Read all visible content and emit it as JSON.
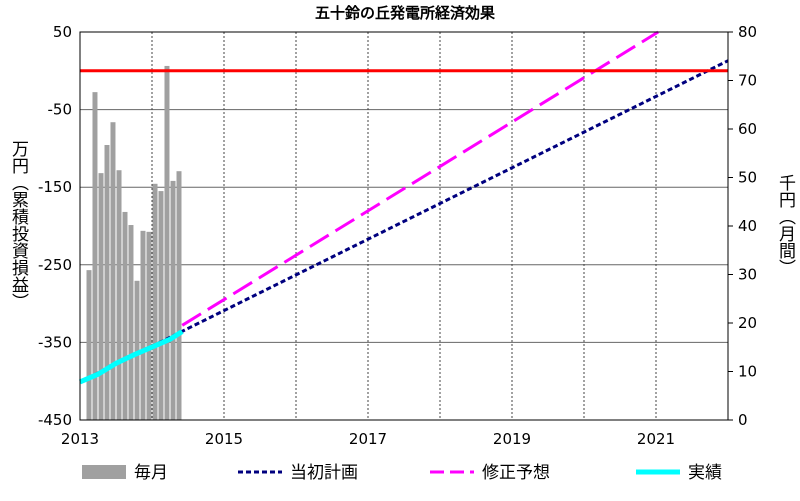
{
  "chart_data": {
    "type": "combo",
    "title": "五十鈴の丘発電所経済効果",
    "ylabel": "万円（累積投資損益）",
    "y2label": "千円（月間）",
    "xlim": [
      2013,
      2022
    ],
    "xticks": [
      2013,
      2015,
      2017,
      2019,
      2021
    ],
    "xminor": [
      2014,
      2016,
      2018,
      2020
    ],
    "ylim": [
      -450,
      50
    ],
    "yticks": [
      -450,
      -350,
      -250,
      -150,
      -50,
      50
    ],
    "y2lim": [
      0,
      80
    ],
    "y2ticks": [
      0,
      10,
      20,
      30,
      40,
      50,
      60,
      70,
      80
    ],
    "grid": true,
    "reference_line": {
      "value": 0,
      "color": "#ff0000"
    },
    "legend": "bottom",
    "series": [
      {
        "name": "毎月",
        "type": "bar",
        "axis": "y2",
        "color": "#a0a0a0",
        "x": [
          2013.125,
          2013.208,
          2013.292,
          2013.375,
          2013.458,
          2013.542,
          2013.625,
          2013.708,
          2013.792,
          2013.875,
          2013.958,
          2014.042,
          2014.125,
          2014.208,
          2014.292,
          2014.375
        ],
        "values": [
          30.9,
          67.6,
          50.9,
          56.7,
          61.4,
          51.5,
          42.9,
          40.2,
          28.7,
          39.0,
          38.8,
          48.7,
          47.2,
          73.0,
          49.3,
          51.3
        ]
      },
      {
        "name": "当初計画",
        "type": "line",
        "color": "#00007f",
        "dash": "short",
        "x": [
          2013,
          2022
        ],
        "values": [
          -401,
          13
        ]
      },
      {
        "name": "修正予想",
        "type": "line",
        "color": "#ff00ff",
        "dash": "long",
        "x": [
          2014.42,
          2021.03
        ],
        "values": [
          -328,
          50
        ]
      },
      {
        "name": "実績",
        "type": "line",
        "color": "#00ffff",
        "dash": "solid",
        "x": [
          2013,
          2013.25,
          2013.5,
          2013.75,
          2014,
          2014.25,
          2014.42
        ],
        "values": [
          -401,
          -391,
          -377,
          -366,
          -356,
          -346,
          -336
        ]
      }
    ]
  }
}
